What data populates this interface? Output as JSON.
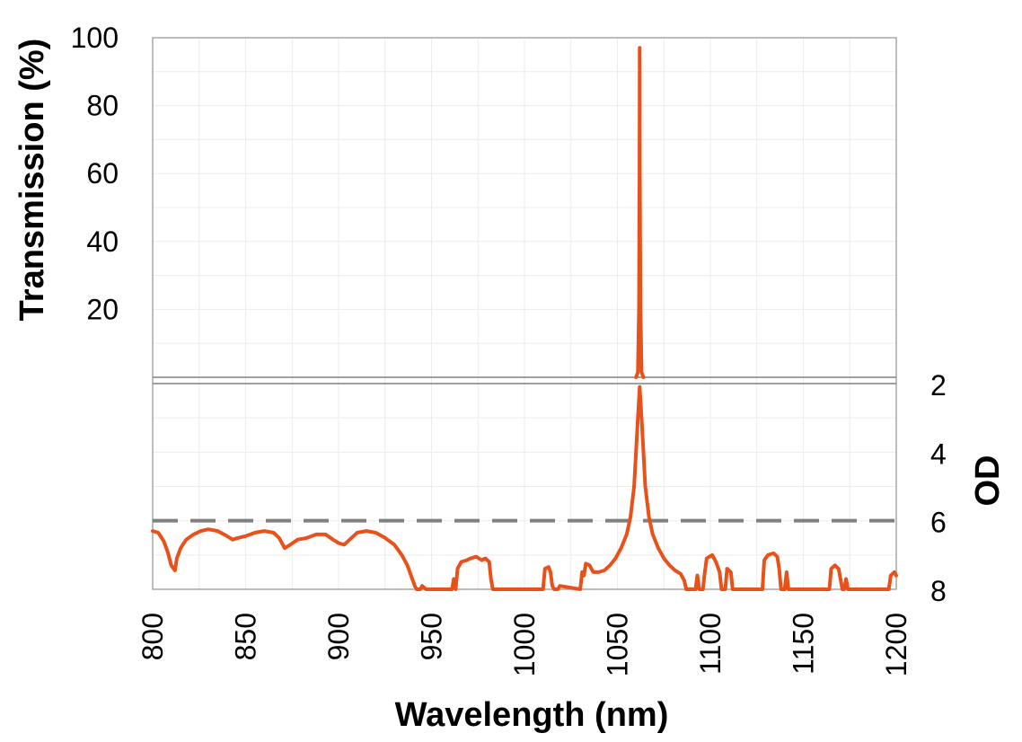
{
  "chart_data": {
    "type": "line",
    "xlabel": "Wavelength (nm)",
    "ylabel_top": "Transmission (%)",
    "ylabel_bottom": "OD",
    "xlim": [
      800,
      1200
    ],
    "x_ticks": [
      "800",
      "850",
      "900",
      "950",
      "1000",
      "1050",
      "1100",
      "1150",
      "1200"
    ],
    "top_panel": {
      "ylim": [
        0,
        100
      ],
      "y_ticks": [
        "100",
        "80",
        "60",
        "40",
        "20"
      ],
      "series": [
        {
          "points": [
            [
              1060,
              0
            ],
            [
              1061,
              1.5
            ],
            [
              1061.6,
              20
            ],
            [
              1061.9,
              60
            ],
            [
              1062,
              97
            ],
            [
              1062.1,
              60
            ],
            [
              1062.4,
              20
            ],
            [
              1063,
              1.5
            ],
            [
              1064,
              0
            ]
          ]
        }
      ]
    },
    "bottom_panel": {
      "ylim": [
        2,
        8
      ],
      "y_ticks": [
        "2",
        "4",
        "6",
        "8"
      ],
      "reference_line": {
        "y": 6,
        "style": "dashed"
      },
      "series": [
        {
          "points": [
            [
              800,
              6.3
            ],
            [
              803,
              6.35
            ],
            [
              806,
              6.6
            ],
            [
              808,
              6.9
            ],
            [
              810,
              7.3
            ],
            [
              812,
              7.45
            ],
            [
              813,
              7.1
            ],
            [
              815,
              6.8
            ],
            [
              818,
              6.55
            ],
            [
              822,
              6.4
            ],
            [
              826,
              6.3
            ],
            [
              830,
              6.25
            ],
            [
              835,
              6.3
            ],
            [
              840,
              6.45
            ],
            [
              843,
              6.55
            ],
            [
              846,
              6.5
            ],
            [
              850,
              6.45
            ],
            [
              855,
              6.35
            ],
            [
              860,
              6.3
            ],
            [
              865,
              6.35
            ],
            [
              868,
              6.5
            ],
            [
              871,
              6.8
            ],
            [
              874,
              6.7
            ],
            [
              878,
              6.55
            ],
            [
              883,
              6.5
            ],
            [
              888,
              6.4
            ],
            [
              893,
              6.4
            ],
            [
              897,
              6.55
            ],
            [
              900,
              6.65
            ],
            [
              903,
              6.7
            ],
            [
              906,
              6.55
            ],
            [
              910,
              6.35
            ],
            [
              915,
              6.3
            ],
            [
              920,
              6.35
            ],
            [
              925,
              6.5
            ],
            [
              930,
              6.7
            ],
            [
              934,
              7.0
            ],
            [
              937,
              7.3
            ],
            [
              939,
              7.6
            ],
            [
              941,
              7.9
            ],
            [
              942,
              8.0
            ],
            [
              944,
              8.0
            ],
            [
              945,
              7.9
            ],
            [
              947,
              8.0
            ],
            [
              961,
              8.0
            ],
            [
              962,
              7.7
            ],
            [
              963,
              8.0
            ],
            [
              964,
              7.4
            ],
            [
              966,
              7.2
            ],
            [
              969,
              7.15
            ],
            [
              971,
              7.1
            ],
            [
              974,
              7.05
            ],
            [
              977,
              7.15
            ],
            [
              979,
              7.1
            ],
            [
              981,
              7.2
            ],
            [
              982,
              7.7
            ],
            [
              983,
              8.0
            ],
            [
              1010,
              8.0
            ],
            [
              1011,
              7.4
            ],
            [
              1013,
              7.35
            ],
            [
              1014,
              7.5
            ],
            [
              1015,
              7.9
            ],
            [
              1016,
              8.0
            ],
            [
              1018,
              8.0
            ],
            [
              1019,
              7.9
            ],
            [
              1030,
              8.0
            ],
            [
              1031,
              7.5
            ],
            [
              1032,
              7.6
            ],
            [
              1033,
              7.25
            ],
            [
              1035,
              7.3
            ],
            [
              1037,
              7.5
            ],
            [
              1040,
              7.5
            ],
            [
              1043,
              7.45
            ],
            [
              1046,
              7.3
            ],
            [
              1049,
              7.1
            ],
            [
              1052,
              6.8
            ],
            [
              1055,
              6.4
            ],
            [
              1057,
              5.9
            ],
            [
              1059,
              5.0
            ],
            [
              1060,
              4.0
            ],
            [
              1061,
              3.0
            ],
            [
              1062,
              2.1
            ],
            [
              1063,
              3.0
            ],
            [
              1064,
              4.0
            ],
            [
              1065,
              5.0
            ],
            [
              1067,
              5.9
            ],
            [
              1069,
              6.4
            ],
            [
              1072,
              6.8
            ],
            [
              1075,
              7.1
            ],
            [
              1078,
              7.3
            ],
            [
              1081,
              7.45
            ],
            [
              1084,
              7.55
            ],
            [
              1086,
              7.75
            ],
            [
              1087,
              8.0
            ],
            [
              1092,
              8.0
            ],
            [
              1093,
              7.6
            ],
            [
              1094,
              8.0
            ],
            [
              1096,
              8.0
            ],
            [
              1097,
              7.5
            ],
            [
              1098,
              7.1
            ],
            [
              1101,
              7.0
            ],
            [
              1103,
              7.2
            ],
            [
              1105,
              7.5
            ],
            [
              1106,
              8.0
            ],
            [
              1108,
              8.0
            ],
            [
              1109,
              7.4
            ],
            [
              1111,
              7.5
            ],
            [
              1112,
              8.0
            ],
            [
              1128,
              8.0
            ],
            [
              1129,
              7.15
            ],
            [
              1131,
              7.0
            ],
            [
              1134,
              6.95
            ],
            [
              1136,
              7.05
            ],
            [
              1137,
              7.4
            ],
            [
              1138,
              8.0
            ],
            [
              1140,
              8.0
            ],
            [
              1141,
              7.5
            ],
            [
              1142,
              8.0
            ],
            [
              1164,
              8.0
            ],
            [
              1165,
              7.4
            ],
            [
              1167,
              7.3
            ],
            [
              1169,
              7.4
            ],
            [
              1171,
              8.0
            ],
            [
              1172,
              8.0
            ],
            [
              1173,
              7.7
            ],
            [
              1174,
              8.0
            ],
            [
              1196,
              8.0
            ],
            [
              1197,
              7.6
            ],
            [
              1199,
              7.5
            ],
            [
              1200,
              7.6
            ]
          ]
        }
      ]
    },
    "colors": {
      "series": "#e8511a",
      "reference_line": "#808080",
      "grid": "#ececec",
      "frame": "#a6a6a6"
    }
  }
}
